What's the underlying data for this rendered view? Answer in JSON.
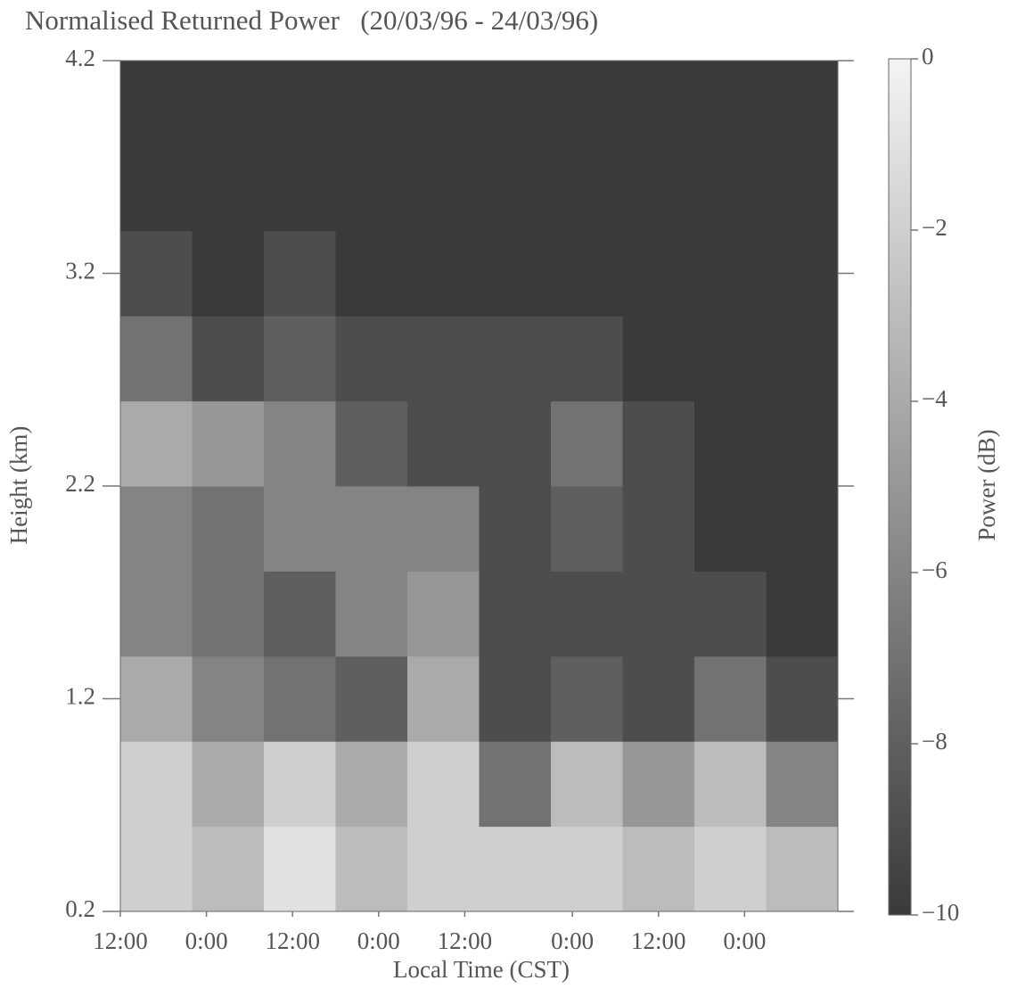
{
  "chart_data": {
    "type": "heatmap",
    "title": "Normalised Returned Power   (20/03/96 - 24/03/96)",
    "x_label": "Local Time (CST)",
    "y_label": "Height (km)",
    "colorbar_label": "Power (dB)",
    "x": [
      5,
      15,
      25,
      35,
      45,
      55,
      65,
      75,
      85,
      95
    ],
    "y": [
      0.4,
      0.8,
      1.2,
      1.6,
      2.0,
      2.4,
      2.8,
      3.2,
      3.6,
      4.0
    ],
    "z": [
      [
        -2,
        -3,
        -1,
        -3,
        -2,
        -2,
        -2,
        -3,
        -2,
        -3
      ],
      [
        -2,
        -4,
        -2,
        -4,
        -2,
        -7,
        -3,
        -5,
        -3,
        -6
      ],
      [
        -4,
        -6,
        -7,
        -8,
        -4,
        -9,
        -8,
        -9,
        -7,
        -9
      ],
      [
        -6,
        -7,
        -8,
        -6,
        -5,
        -9,
        -9,
        -9,
        -9,
        -10
      ],
      [
        -6,
        -7,
        -6,
        -6,
        -6,
        -9,
        -8,
        -9,
        -10,
        -10
      ],
      [
        -4,
        -5,
        -6,
        -8,
        -9,
        -9,
        -7,
        -9,
        -10,
        -10
      ],
      [
        -7,
        -9,
        -8,
        -9,
        -9,
        -9,
        -9,
        -10,
        -10,
        -10
      ],
      [
        -9,
        -10,
        -9,
        -10,
        -10,
        -10,
        -10,
        -10,
        -10,
        -10
      ],
      [
        -10,
        -10,
        -10,
        -10,
        -10,
        -10,
        -10,
        -10,
        -10,
        -10
      ],
      [
        -10,
        -10,
        -10,
        -10,
        -10,
        -10,
        -10,
        -10,
        -10,
        -10
      ]
    ],
    "xlim": [
      0,
      100
    ],
    "ylim": [
      0.2,
      4.2
    ],
    "zlim": [
      -10,
      0
    ],
    "xticks": [
      {
        "value": 0,
        "label": "12:00"
      },
      {
        "value": 12,
        "label": "0:00"
      },
      {
        "value": 24,
        "label": "12:00"
      },
      {
        "value": 36,
        "label": "0:00"
      },
      {
        "value": 48,
        "label": "12:00"
      },
      {
        "value": 63,
        "label": "0:00"
      },
      {
        "value": 75,
        "label": "12:00"
      },
      {
        "value": 87,
        "label": "0:00"
      }
    ],
    "yticks": [
      0.2,
      1.2,
      2.2,
      3.2,
      4.2
    ],
    "zticks": [
      0,
      {
        "value": -2,
        "label": "−2"
      },
      {
        "value": -4,
        "label": "−4"
      },
      {
        "value": -6,
        "label": "−6"
      },
      {
        "value": -8,
        "label": "−8"
      },
      {
        "value": -10,
        "label": "−10"
      }
    ],
    "colormap": [
      "#3a3a3a",
      "#f4f4f4"
    ]
  }
}
